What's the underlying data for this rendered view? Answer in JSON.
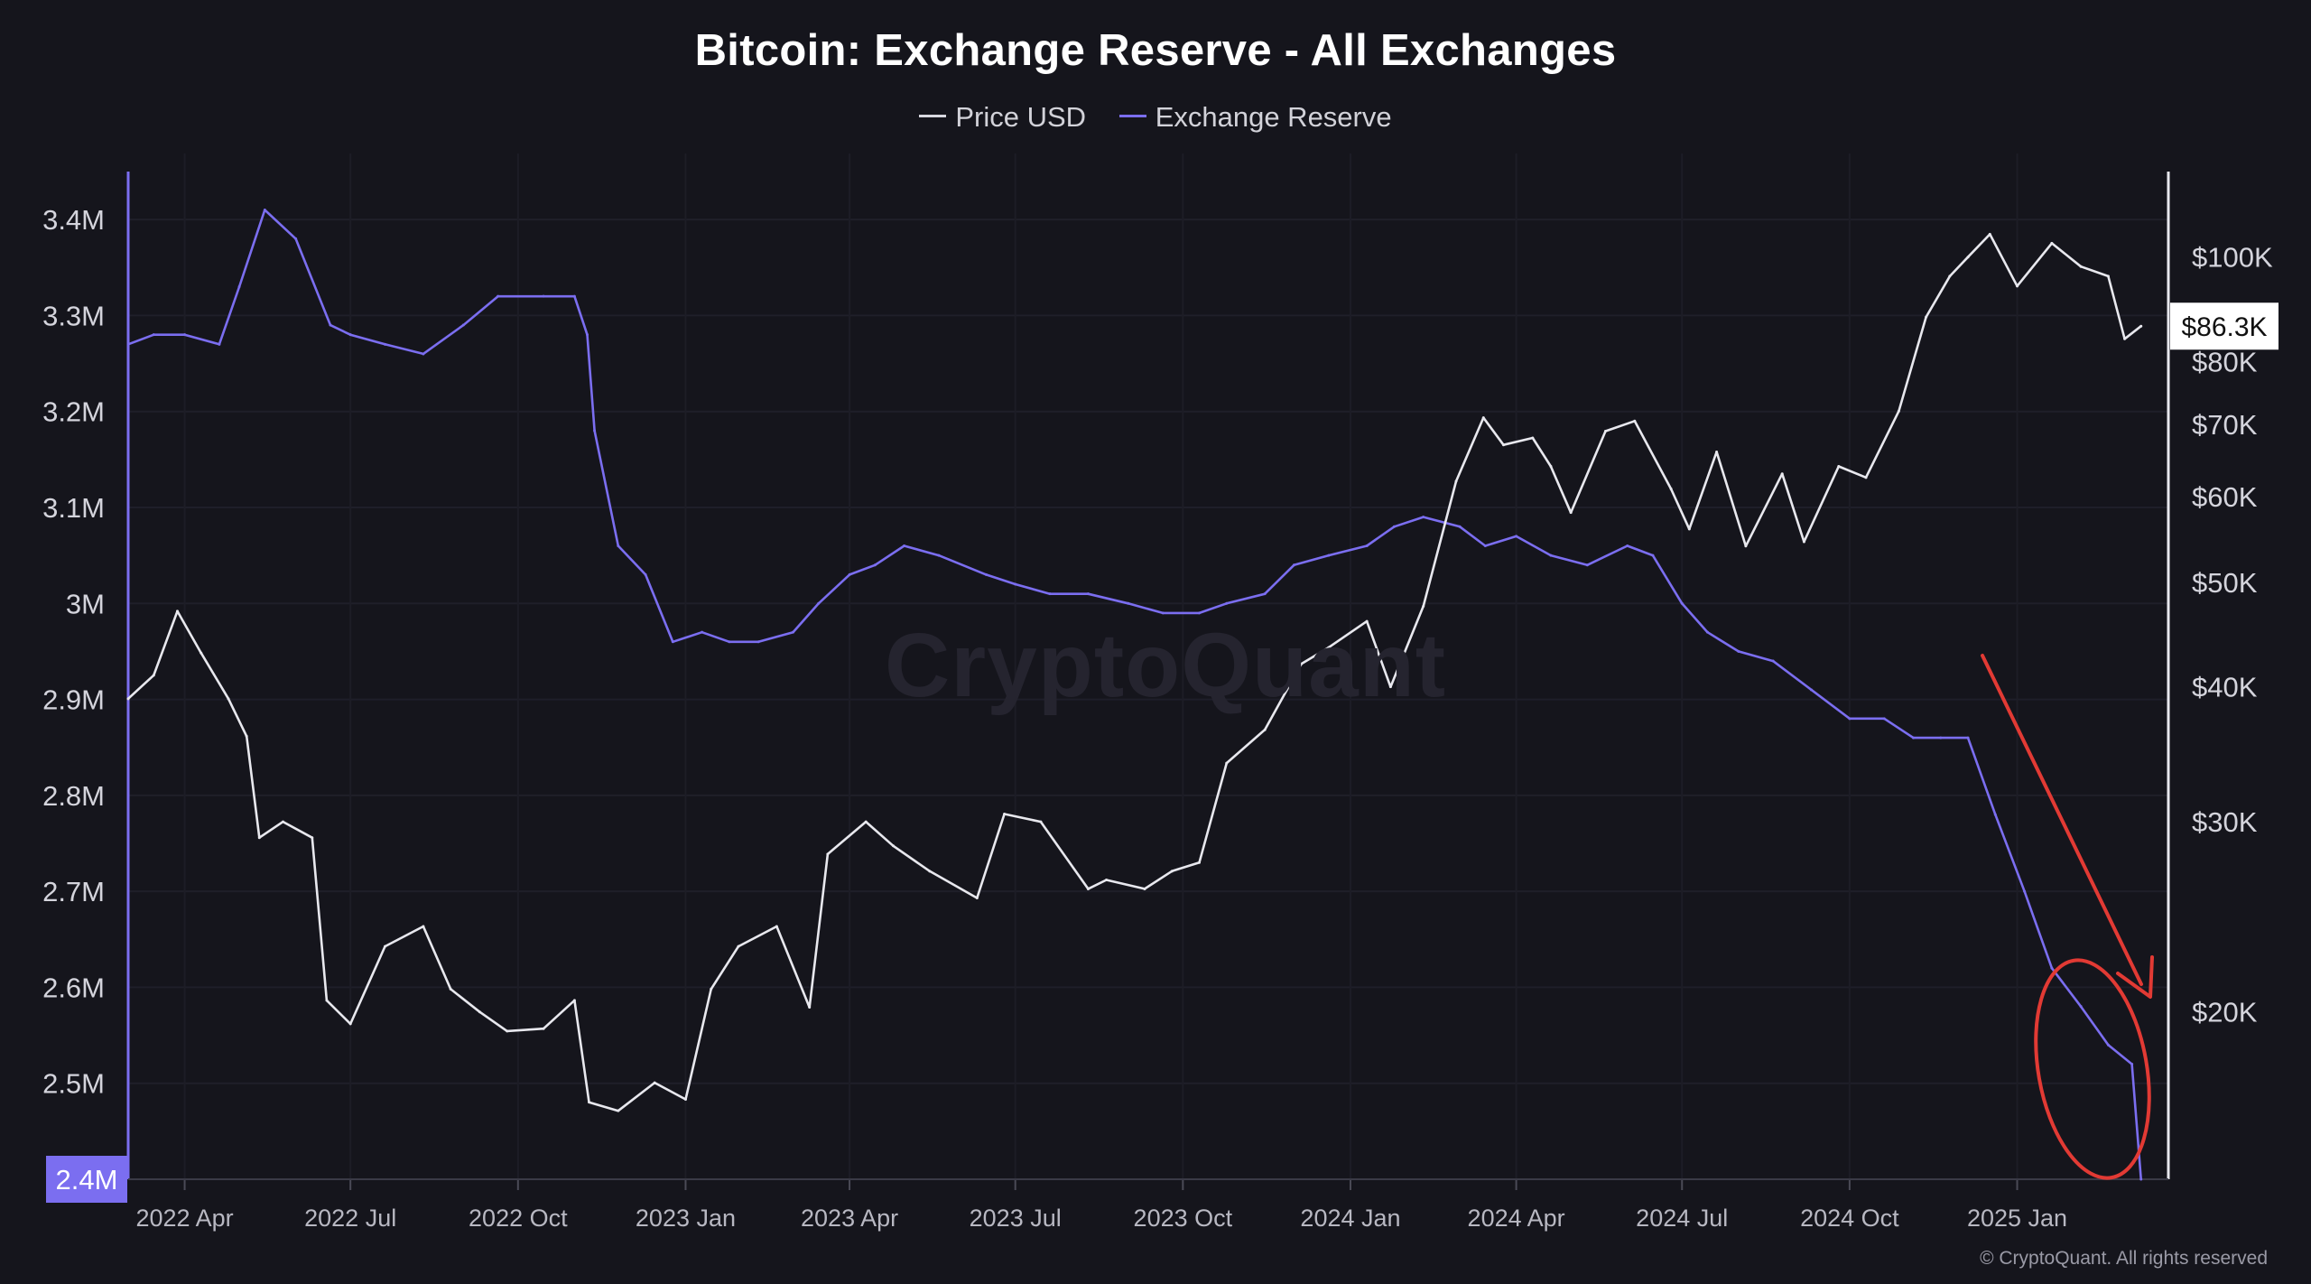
{
  "chart_data": {
    "type": "line",
    "title": "Bitcoin: Exchange Reserve - All Exchanges",
    "legend": [
      "Price USD",
      "Exchange Reserve"
    ],
    "legend_position": "top-center",
    "x_ticks": [
      "2022 Apr",
      "2022 Jul",
      "2022 Oct",
      "2023 Jan",
      "2023 Apr",
      "2023 Jul",
      "2023 Oct",
      "2024 Jan",
      "2024 Apr",
      "2024 Jul",
      "2024 Oct",
      "2025 Jan"
    ],
    "xlim": [
      "2022-03-01",
      "2025-03-25"
    ],
    "y_left": {
      "ticks": [
        "3.4M",
        "3.3M",
        "3.2M",
        "3.1M",
        "3M",
        "2.9M",
        "2.8M",
        "2.7M",
        "2.6M",
        "2.5M"
      ],
      "range": [
        2.4,
        3.45
      ],
      "unit": "BTC (millions)",
      "current_label": "2.4M"
    },
    "y_right": {
      "scale": "log",
      "ticks": [
        "$100K",
        "$80K",
        "$70K",
        "$60K",
        "$50K",
        "$40K",
        "$30K",
        "$20K"
      ],
      "range": [
        14000,
        120000
      ],
      "current_label": "$86.3K"
    },
    "grid": true,
    "series": [
      {
        "name": "Exchange Reserve",
        "axis": "left",
        "color": "#7b6ef0",
        "x": [
          "2022-03-01",
          "2022-03-15",
          "2022-04-01",
          "2022-04-20",
          "2022-05-01",
          "2022-05-15",
          "2022-06-01",
          "2022-06-20",
          "2022-07-01",
          "2022-07-20",
          "2022-08-10",
          "2022-09-01",
          "2022-09-20",
          "2022-10-15",
          "2022-11-01",
          "2022-11-08",
          "2022-11-12",
          "2022-11-25",
          "2022-12-10",
          "2022-12-25",
          "2023-01-10",
          "2023-01-25",
          "2023-02-10",
          "2023-03-01",
          "2023-03-15",
          "2023-04-01",
          "2023-04-15",
          "2023-05-01",
          "2023-05-20",
          "2023-06-15",
          "2023-07-01",
          "2023-07-20",
          "2023-08-10",
          "2023-09-01",
          "2023-09-20",
          "2023-10-10",
          "2023-10-25",
          "2023-11-15",
          "2023-12-01",
          "2023-12-20",
          "2024-01-10",
          "2024-01-25",
          "2024-02-10",
          "2024-03-01",
          "2024-03-15",
          "2024-04-01",
          "2024-04-20",
          "2024-05-10",
          "2024-06-01",
          "2024-06-15",
          "2024-07-01",
          "2024-07-15",
          "2024-08-01",
          "2024-08-20",
          "2024-09-10",
          "2024-10-01",
          "2024-10-20",
          "2024-11-05",
          "2024-11-20",
          "2024-12-05",
          "2024-12-20",
          "2025-01-05",
          "2025-01-20",
          "2025-02-05",
          "2025-02-20",
          "2025-03-05",
          "2025-03-10"
        ],
        "values": [
          3.27,
          3.28,
          3.28,
          3.27,
          3.33,
          3.41,
          3.38,
          3.29,
          3.28,
          3.27,
          3.26,
          3.29,
          3.32,
          3.32,
          3.32,
          3.28,
          3.18,
          3.06,
          3.03,
          2.96,
          2.97,
          2.96,
          2.96,
          2.97,
          3.0,
          3.03,
          3.04,
          3.06,
          3.05,
          3.03,
          3.02,
          3.01,
          3.01,
          3.0,
          2.99,
          2.99,
          3.0,
          3.01,
          3.04,
          3.05,
          3.06,
          3.08,
          3.09,
          3.08,
          3.06,
          3.07,
          3.05,
          3.04,
          3.06,
          3.05,
          3.0,
          2.97,
          2.95,
          2.94,
          2.91,
          2.88,
          2.88,
          2.86,
          2.86,
          2.86,
          2.78,
          2.7,
          2.62,
          2.58,
          2.54,
          2.52,
          2.4
        ]
      },
      {
        "name": "Price USD",
        "axis": "right",
        "color": "#e8e8ee",
        "x": [
          "2022-03-01",
          "2022-03-15",
          "2022-03-28",
          "2022-04-10",
          "2022-04-25",
          "2022-05-05",
          "2022-05-12",
          "2022-05-25",
          "2022-06-10",
          "2022-06-18",
          "2022-07-01",
          "2022-07-20",
          "2022-08-10",
          "2022-08-25",
          "2022-09-10",
          "2022-09-25",
          "2022-10-15",
          "2022-11-01",
          "2022-11-09",
          "2022-11-25",
          "2022-12-15",
          "2023-01-01",
          "2023-01-15",
          "2023-01-30",
          "2023-02-20",
          "2023-03-10",
          "2023-03-20",
          "2023-04-10",
          "2023-04-25",
          "2023-05-15",
          "2023-06-10",
          "2023-06-25",
          "2023-07-15",
          "2023-08-10",
          "2023-08-20",
          "2023-09-10",
          "2023-09-25",
          "2023-10-10",
          "2023-10-25",
          "2023-11-15",
          "2023-12-05",
          "2023-12-20",
          "2024-01-10",
          "2024-01-23",
          "2024-02-10",
          "2024-02-28",
          "2024-03-14",
          "2024-03-25",
          "2024-04-10",
          "2024-04-20",
          "2024-05-01",
          "2024-05-20",
          "2024-06-05",
          "2024-06-25",
          "2024-07-05",
          "2024-07-20",
          "2024-08-05",
          "2024-08-25",
          "2024-09-06",
          "2024-09-25",
          "2024-10-10",
          "2024-10-28",
          "2024-11-12",
          "2024-11-25",
          "2024-12-05",
          "2024-12-17",
          "2025-01-01",
          "2025-01-20",
          "2025-02-05",
          "2025-02-20",
          "2025-03-01",
          "2025-03-10"
        ],
        "values": [
          39000,
          41000,
          47000,
          43000,
          39000,
          36000,
          29000,
          30000,
          29000,
          20500,
          19500,
          23000,
          24000,
          21000,
          20000,
          19200,
          19300,
          20500,
          16500,
          16200,
          17200,
          16600,
          21000,
          23000,
          24000,
          20200,
          28000,
          30000,
          28500,
          27000,
          25500,
          30500,
          30000,
          26000,
          26500,
          26000,
          27000,
          27500,
          34000,
          36500,
          42000,
          43500,
          46000,
          40000,
          47500,
          62000,
          71000,
          67000,
          68000,
          64000,
          58000,
          69000,
          70500,
          61000,
          56000,
          66000,
          54000,
          63000,
          54500,
          64000,
          62500,
          72000,
          88000,
          96000,
          100000,
          105000,
          94000,
          103000,
          98000,
          96000,
          84000,
          86300
        ]
      }
    ],
    "annotations": [
      {
        "type": "arrow",
        "color": "#e23a34"
      },
      {
        "type": "ellipse",
        "color": "#e23a34"
      }
    ]
  },
  "watermark": "CryptoQuant",
  "footer": "© CryptoQuant. All rights reserved"
}
